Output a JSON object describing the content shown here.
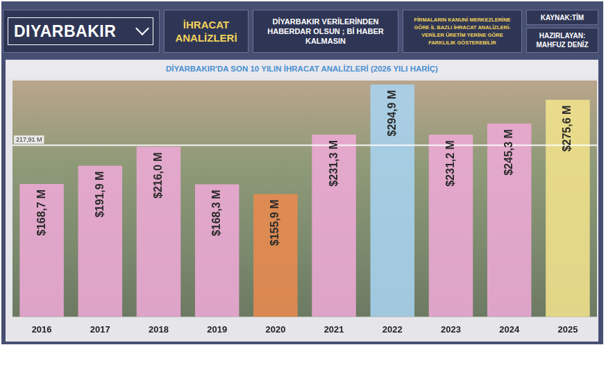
{
  "header": {
    "dropdown": "DIYARBAKIR",
    "section": "İHRACAT ANALİZLERİ",
    "slogan": "DİYARBAKIR VERİLERİNDEN HABERDAR OLSUN ; Bİ HABER KALMASIN",
    "note": "FİRMALARIN KANUNİ MERKEZLERİNE GÖRE İL BAZLI İHRACAT ANALİZLERİ-VERİLER ÜRETİM YERİNE GÖRE FARKLILIK GÖSTEREBİLİR",
    "source": "KAYNAK:TİM",
    "author": "HAZIRLAYAN: MAHFUZ DENİZ"
  },
  "chart_data": {
    "type": "bar",
    "title": "DİYARBAKIR'DA SON 10 YILIN İHRACAT ANALİZLERİ (2026 YILI HARİÇ)",
    "categories": [
      "2016",
      "2017",
      "2018",
      "2019",
      "2020",
      "2021",
      "2022",
      "2023",
      "2024",
      "2025"
    ],
    "values": [
      168.7,
      191.9,
      216.0,
      168.3,
      155.9,
      231.3,
      294.9,
      231.2,
      245.3,
      275.6
    ],
    "value_labels": [
      "$168,7 M",
      "$191,9 M",
      "$216,0 M",
      "$168,3 M",
      "$155,9 M",
      "$231,3 M",
      "$294,9 M",
      "$231,2 M",
      "$245,3 M",
      "$275,6 M"
    ],
    "colors": [
      "#eeaad6",
      "#eeaad6",
      "#eeaad6",
      "#eeaad6",
      "#e98a4f",
      "#eeaad6",
      "#a9d3f0",
      "#eeaad6",
      "#eeaad6",
      "#f1e38c"
    ],
    "reference_line": {
      "value": 217.91,
      "label": "217,91 M"
    },
    "ylim": [
      0,
      300
    ],
    "grid": false,
    "data_labels": true,
    "tick_labels": "x"
  }
}
